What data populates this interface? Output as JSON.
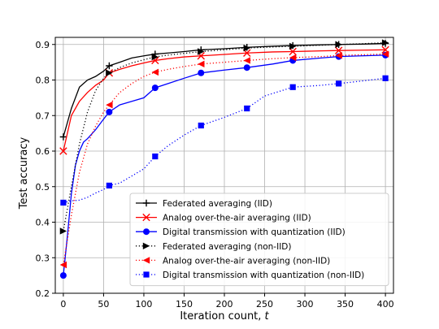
{
  "chart_data": {
    "type": "line",
    "title": "",
    "xlabel": "Iteration count, ",
    "xlabel_var": "t",
    "ylabel": "Test accuracy",
    "xlim": [
      -10,
      410
    ],
    "ylim": [
      0.2,
      0.92
    ],
    "xticks": [
      0,
      50,
      100,
      150,
      200,
      250,
      300,
      350,
      400
    ],
    "yticks": [
      0.2,
      0.3,
      0.4,
      0.5,
      0.6,
      0.7,
      0.8,
      0.9
    ],
    "grid": true,
    "legend_position": "lower-right",
    "series": [
      {
        "name": "Federated averaging (IID)",
        "color": "#000000",
        "linestyle": "solid",
        "marker": "plus",
        "x": [
          0,
          5,
          10,
          20,
          30,
          40,
          50,
          57,
          70,
          85,
          100,
          114,
          130,
          150,
          171,
          200,
          228,
          260,
          285,
          320,
          342,
          370,
          400
        ],
        "y": [
          0.64,
          0.68,
          0.72,
          0.78,
          0.8,
          0.81,
          0.825,
          0.84,
          0.85,
          0.862,
          0.868,
          0.873,
          0.876,
          0.88,
          0.885,
          0.888,
          0.892,
          0.895,
          0.897,
          0.899,
          0.9,
          0.901,
          0.903
        ],
        "marker_x": [
          0,
          57,
          114,
          171,
          228,
          285,
          342,
          400
        ],
        "marker_y": [
          0.64,
          0.84,
          0.873,
          0.885,
          0.892,
          0.897,
          0.9,
          0.903
        ]
      },
      {
        "name": "Analog over-the-air averaging (IID)",
        "color": "#ff0000",
        "linestyle": "solid",
        "marker": "x",
        "x": [
          0,
          5,
          10,
          20,
          30,
          40,
          50,
          57,
          70,
          85,
          100,
          114,
          130,
          150,
          171,
          200,
          228,
          260,
          285,
          320,
          342,
          370,
          400
        ],
        "y": [
          0.6,
          0.65,
          0.7,
          0.74,
          0.765,
          0.785,
          0.8,
          0.82,
          0.83,
          0.84,
          0.848,
          0.855,
          0.86,
          0.865,
          0.868,
          0.872,
          0.876,
          0.879,
          0.88,
          0.882,
          0.883,
          0.884,
          0.885
        ],
        "marker_x": [
          0,
          57,
          114,
          171,
          228,
          285,
          342,
          400
        ],
        "marker_y": [
          0.6,
          0.82,
          0.855,
          0.868,
          0.876,
          0.88,
          0.883,
          0.885
        ]
      },
      {
        "name": "Digital transmission with quantization (IID)",
        "color": "#0000ff",
        "linestyle": "solid",
        "marker": "circle",
        "x": [
          0,
          5,
          10,
          15,
          20,
          25,
          30,
          40,
          50,
          57,
          70,
          85,
          100,
          114,
          130,
          150,
          171,
          200,
          228,
          260,
          285,
          320,
          342,
          370,
          400
        ],
        "y": [
          0.25,
          0.36,
          0.48,
          0.56,
          0.6,
          0.625,
          0.635,
          0.66,
          0.69,
          0.71,
          0.73,
          0.74,
          0.75,
          0.778,
          0.79,
          0.805,
          0.82,
          0.828,
          0.835,
          0.845,
          0.855,
          0.862,
          0.866,
          0.868,
          0.87
        ],
        "marker_x": [
          0,
          57,
          114,
          171,
          228,
          285,
          342,
          400
        ],
        "marker_y": [
          0.25,
          0.71,
          0.778,
          0.82,
          0.835,
          0.855,
          0.866,
          0.87
        ]
      },
      {
        "name": "Federated averaging (non-IID)",
        "color": "#000000",
        "linestyle": "dotted",
        "marker": "triangle-right",
        "x": [
          0,
          10,
          20,
          30,
          40,
          50,
          57,
          70,
          85,
          100,
          114,
          130,
          150,
          171,
          200,
          228,
          260,
          285,
          320,
          342,
          370,
          400
        ],
        "y": [
          0.375,
          0.5,
          0.62,
          0.71,
          0.77,
          0.805,
          0.82,
          0.835,
          0.848,
          0.857,
          0.865,
          0.87,
          0.875,
          0.88,
          0.885,
          0.89,
          0.893,
          0.895,
          0.898,
          0.9,
          0.902,
          0.905
        ],
        "marker_x": [
          0,
          57,
          114,
          171,
          228,
          285,
          342,
          400
        ],
        "marker_y": [
          0.375,
          0.82,
          0.865,
          0.88,
          0.89,
          0.895,
          0.9,
          0.905
        ]
      },
      {
        "name": "Analog over-the-air averaging (non-IID)",
        "color": "#ff0000",
        "linestyle": "dotted",
        "marker": "triangle-left",
        "x": [
          0,
          10,
          20,
          30,
          40,
          50,
          57,
          70,
          85,
          100,
          114,
          130,
          150,
          171,
          200,
          228,
          260,
          285,
          320,
          342,
          370,
          400
        ],
        "y": [
          0.28,
          0.42,
          0.54,
          0.62,
          0.67,
          0.71,
          0.73,
          0.765,
          0.79,
          0.81,
          0.822,
          0.83,
          0.838,
          0.845,
          0.85,
          0.855,
          0.86,
          0.863,
          0.866,
          0.869,
          0.871,
          0.873
        ],
        "marker_x": [
          0,
          57,
          114,
          171,
          228,
          285,
          342,
          400
        ],
        "marker_y": [
          0.28,
          0.73,
          0.822,
          0.845,
          0.855,
          0.863,
          0.869,
          0.873
        ]
      },
      {
        "name": "Digital transmission with quantization (non-IID)",
        "color": "#0000ff",
        "linestyle": "dotted",
        "marker": "square",
        "x": [
          0,
          10,
          20,
          30,
          40,
          50,
          57,
          70,
          85,
          100,
          114,
          130,
          150,
          171,
          200,
          228,
          250,
          285,
          320,
          342,
          370,
          400
        ],
        "y": [
          0.455,
          0.46,
          0.462,
          0.47,
          0.482,
          0.492,
          0.503,
          0.51,
          0.53,
          0.55,
          0.585,
          0.615,
          0.645,
          0.672,
          0.695,
          0.72,
          0.755,
          0.78,
          0.785,
          0.79,
          0.797,
          0.805
        ],
        "marker_x": [
          0,
          57,
          114,
          171,
          228,
          285,
          342,
          400
        ],
        "marker_y": [
          0.455,
          0.503,
          0.585,
          0.672,
          0.72,
          0.78,
          0.79,
          0.805
        ]
      }
    ]
  }
}
